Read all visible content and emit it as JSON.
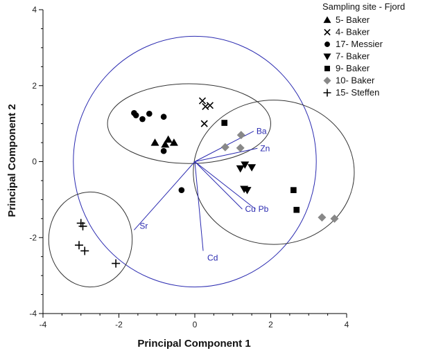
{
  "chart_data": {
    "type": "scatter",
    "title": "",
    "xlabel": "Principal Component 1",
    "ylabel": "Principal Component 2",
    "xlim": [
      -4,
      4
    ],
    "ylim": [
      -4,
      4
    ],
    "xticks": [
      -4,
      -2,
      0,
      2,
      4
    ],
    "yticks": [
      -4,
      -2,
      0,
      2,
      4
    ],
    "grid": false,
    "legend": {
      "title": "Sampling site - Fjord",
      "position": "top-right"
    },
    "series": [
      {
        "name": "5- Baker",
        "marker": "triangle-up",
        "color": "#000000",
        "points": [
          [
            -1.05,
            0.5
          ],
          [
            -0.7,
            0.58
          ],
          [
            -0.55,
            0.5
          ],
          [
            -0.78,
            0.45
          ]
        ]
      },
      {
        "name": "4- Baker",
        "marker": "x",
        "color": "#000000",
        "points": [
          [
            0.2,
            1.6
          ],
          [
            0.28,
            1.45
          ],
          [
            0.4,
            1.48
          ],
          [
            0.25,
            1.0
          ]
        ]
      },
      {
        "name": "17- Messier",
        "marker": "circle",
        "color": "#000000",
        "points": [
          [
            -1.6,
            1.28
          ],
          [
            -1.55,
            1.22
          ],
          [
            -1.38,
            1.12
          ],
          [
            -1.2,
            1.26
          ],
          [
            -0.82,
            1.18
          ],
          [
            -0.82,
            0.28
          ],
          [
            -0.35,
            -0.75
          ]
        ]
      },
      {
        "name": "7- Baker",
        "marker": "triangle-down",
        "color": "#000000",
        "points": [
          [
            1.2,
            -0.18
          ],
          [
            1.32,
            -0.08
          ],
          [
            1.5,
            -0.15
          ],
          [
            1.3,
            -0.72
          ],
          [
            1.38,
            -0.75
          ]
        ]
      },
      {
        "name": "9- Baker",
        "marker": "square",
        "color": "#000000",
        "points": [
          [
            0.78,
            1.02
          ],
          [
            2.6,
            -0.75
          ],
          [
            2.68,
            -1.27
          ]
        ]
      },
      {
        "name": "10- Baker",
        "marker": "diamond",
        "color": "#888888",
        "points": [
          [
            0.8,
            0.38
          ],
          [
            1.22,
            0.7
          ],
          [
            1.2,
            0.36
          ],
          [
            3.35,
            -1.47
          ],
          [
            3.68,
            -1.5
          ]
        ]
      },
      {
        "name": "15- Steffen",
        "marker": "plus",
        "color": "#000000",
        "points": [
          [
            -3.0,
            -1.62
          ],
          [
            -2.95,
            -1.7
          ],
          [
            -3.05,
            -2.2
          ],
          [
            -2.9,
            -2.35
          ],
          [
            -2.08,
            -2.68
          ]
        ]
      }
    ],
    "loadings": [
      {
        "label": "Ba",
        "x": 1.55,
        "y": 0.8
      },
      {
        "label": "Zn",
        "x": 1.65,
        "y": 0.35
      },
      {
        "label": "Cu",
        "x": 1.25,
        "y": -1.25
      },
      {
        "label": "Pb",
        "x": 1.6,
        "y": -1.25
      },
      {
        "label": "Sr",
        "x": -1.6,
        "y": -1.8
      },
      {
        "label": "Cd",
        "x": 0.22,
        "y": -2.35
      }
    ],
    "ellipses": [
      {
        "name": "outer",
        "color": "#2a2ab0",
        "cx": 0.0,
        "cy": 0.0,
        "rx": 3.2,
        "ry": 3.3
      },
      {
        "name": "upper-cluster",
        "color": "#333333",
        "cx": -0.15,
        "cy": 1.0,
        "rx": 2.15,
        "ry": 1.05
      },
      {
        "name": "right-cluster",
        "color": "#333333",
        "cx": 2.08,
        "cy": -0.28,
        "rx": 2.12,
        "ry": 1.9
      },
      {
        "name": "left-cluster",
        "color": "#333333",
        "cx": -2.75,
        "cy": -2.05,
        "rx": 1.1,
        "ry": 1.25
      }
    ]
  }
}
